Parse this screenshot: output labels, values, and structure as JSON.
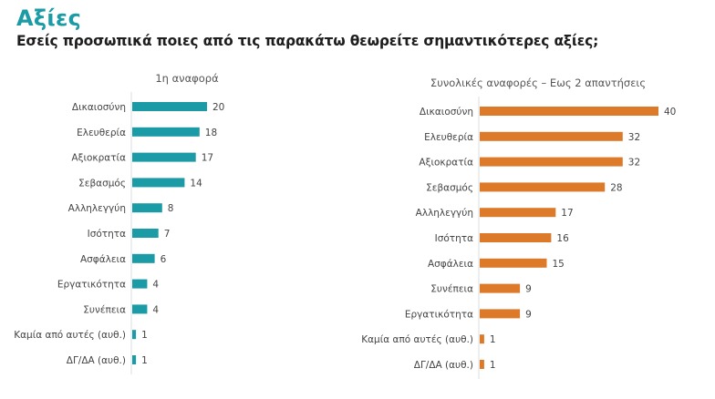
{
  "header": {
    "title": "Αξίες",
    "subtitle": "Εσείς προσωπικά ποιες από τις παρακάτω θεωρείτε σημαντικότερες αξίες;"
  },
  "chart_data": [
    {
      "type": "bar",
      "orientation": "horizontal",
      "title": "1η αναφορά",
      "color": "#1a9ba5",
      "categories": [
        "Δικαιοσύνη",
        "Ελευθερία",
        "Αξιοκρατία",
        "Σεβασμός",
        "Αλληλεγγύη",
        "Ισότητα",
        "Ασφάλεια",
        "Εργατικότητα",
        "Συνέπεια",
        "Καμία από αυτές (αυθ.)",
        "ΔΓ/ΔΑ (αυθ.)"
      ],
      "values": [
        20,
        18,
        17,
        14,
        8,
        7,
        6,
        4,
        4,
        1,
        1
      ],
      "xlabel": "",
      "ylabel": "",
      "grid": false
    },
    {
      "type": "bar",
      "orientation": "horizontal",
      "title": "Συνολικές αναφορές – Εως 2 απαντήσεις",
      "color": "#dd7a2a",
      "categories": [
        "Δικαιοσύνη",
        "Ελευθερία",
        "Αξιοκρατία",
        "Σεβασμός",
        "Αλληλεγγύη",
        "Ισότητα",
        "Ασφάλεια",
        "Συνέπεια",
        "Εργατικότητα",
        "Καμία από αυτές (αυθ.)",
        "ΔΓ/ΔΑ (αυθ.)"
      ],
      "values": [
        40,
        32,
        32,
        28,
        17,
        16,
        15,
        9,
        9,
        1,
        1
      ],
      "xlabel": "",
      "ylabel": "",
      "grid": false
    }
  ]
}
